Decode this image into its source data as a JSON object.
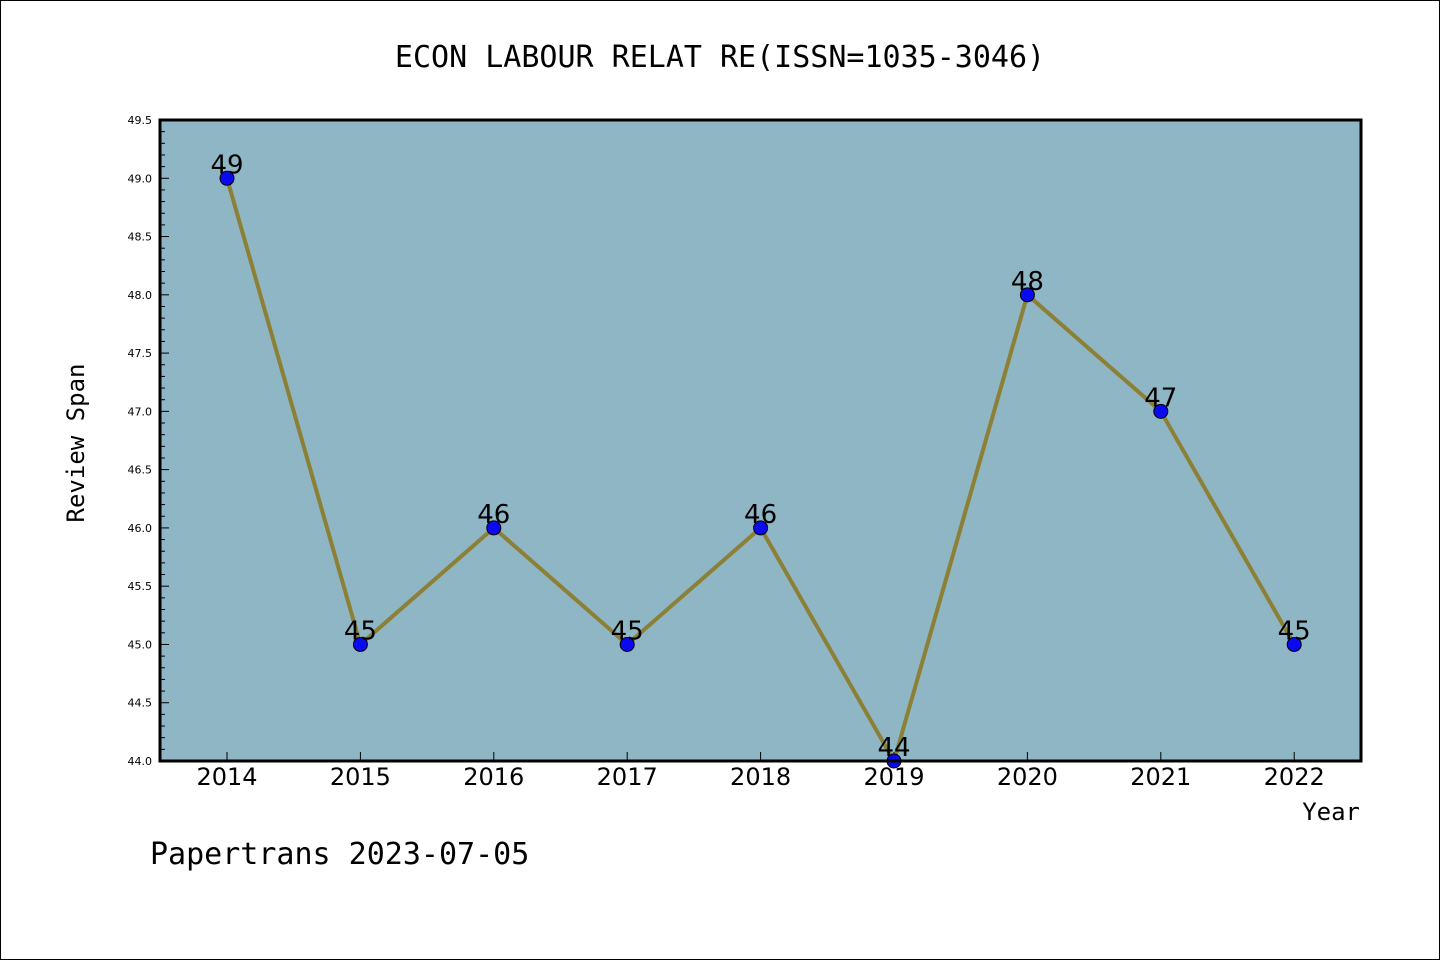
{
  "chart_data": {
    "type": "line",
    "title": "ECON LABOUR RELAT RE(ISSN=1035-3046)",
    "xlabel": "Year",
    "ylabel": "Review Span",
    "categories": [
      "2014",
      "2015",
      "2016",
      "2017",
      "2018",
      "2019",
      "2020",
      "2021",
      "2022"
    ],
    "values": [
      49,
      45,
      46,
      45,
      46,
      44,
      48,
      47,
      45
    ],
    "ylim": [
      44.0,
      49.5
    ],
    "yticks": [
      "44.0",
      "44.5",
      "45.0",
      "45.5",
      "46.0",
      "46.5",
      "47.0",
      "47.5",
      "48.0",
      "48.5",
      "49.0",
      "49.5"
    ],
    "grid": false,
    "colors": {
      "plot_background": "#8fb6c4",
      "line": "#8b8036",
      "marker": "#0a0af0"
    }
  },
  "footer": "Papertrans 2023-07-05"
}
